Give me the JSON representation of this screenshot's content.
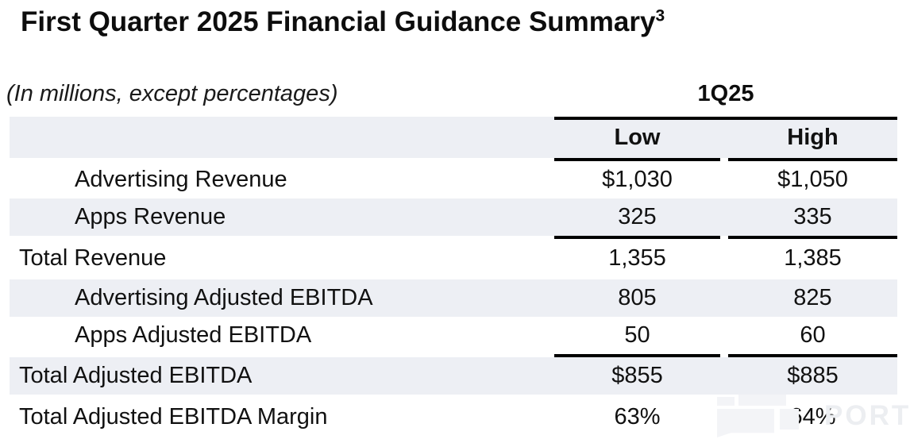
{
  "title": {
    "text": "First Quarter 2025 Financial Guidance Summary",
    "footnote_marker": "3"
  },
  "note": "(In millions, except percentages)",
  "table": {
    "period": "1Q25",
    "columns": {
      "low": "Low",
      "high": "High"
    },
    "rows": [
      {
        "label": "Advertising Revenue",
        "low": "$1,030",
        "high": "$1,050"
      },
      {
        "label": "Apps Revenue",
        "low": "325",
        "high": "335"
      },
      {
        "label": "Total Revenue",
        "low": "1,355",
        "high": "1,385"
      },
      {
        "label": "Advertising Adjusted EBITDA",
        "low": "805",
        "high": "825"
      },
      {
        "label": "Apps Adjusted EBITDA",
        "low": "50",
        "high": "60"
      },
      {
        "label": "Total Adjusted EBITDA",
        "low": "$855",
        "high": "$885"
      },
      {
        "label": "Total Adjusted EBITDA Margin",
        "low": "63%",
        "high": "64%"
      }
    ]
  },
  "watermark": {
    "text": "PORT"
  },
  "colors": {
    "stripe": "#edeff4",
    "rule": "#000000",
    "text": "#111111",
    "watermark": "#eceef1"
  }
}
